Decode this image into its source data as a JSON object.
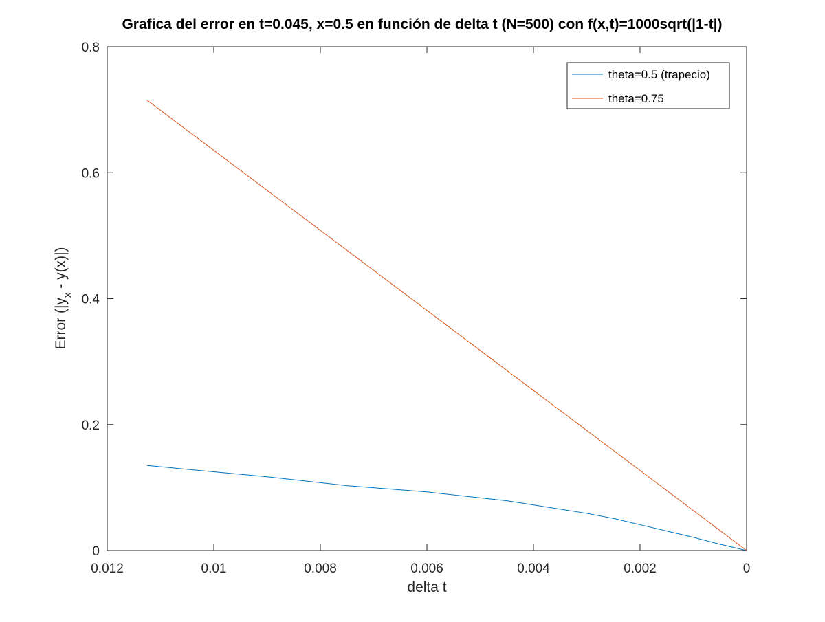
{
  "chart_data": {
    "type": "line",
    "title": "Grafica del error en t=0.045, x=0.5 en función de delta t (N=500) con f(x,t)=1000sqrt(|1-t|)",
    "xlabel": "delta t",
    "ylabel": {
      "prefix": "Error (|y",
      "subscript": "x",
      "suffix": " - y(x)|)"
    },
    "x_reversed": true,
    "xlim": [
      0,
      0.012
    ],
    "ylim": [
      0,
      0.8
    ],
    "xticks": [
      0.012,
      0.01,
      0.008,
      0.006,
      0.004,
      0.002,
      0
    ],
    "xtick_labels": [
      "0.012",
      "0.01",
      "0.008",
      "0.006",
      "0.004",
      "0.002",
      "0"
    ],
    "yticks": [
      0,
      0.2,
      0.4,
      0.6,
      0.8
    ],
    "ytick_labels": [
      "0",
      "0.2",
      "0.4",
      "0.6",
      "0.8"
    ],
    "grid": false,
    "legend_position": "top-right",
    "series": [
      {
        "name": "theta=0.5 (trapecio)",
        "color": "#0072bd",
        "x": [
          0.01125,
          0.01,
          0.009,
          0.0075,
          0.006,
          0.0045,
          0.00375,
          0.003,
          0.0025,
          0.002,
          0.0015,
          0.001,
          0.0005,
          0
        ],
        "y": [
          0.135,
          0.125,
          0.117,
          0.103,
          0.093,
          0.079,
          0.069,
          0.059,
          0.051,
          0.041,
          0.031,
          0.021,
          0.01,
          0
        ]
      },
      {
        "name": "theta=0.75",
        "color": "#d95319",
        "x": [
          0.01125,
          0.0075,
          0.005,
          0.00375,
          0.0025,
          0.001,
          0
        ],
        "y": [
          0.715,
          0.4767,
          0.3178,
          0.2383,
          0.1589,
          0.0636,
          0
        ]
      }
    ]
  }
}
